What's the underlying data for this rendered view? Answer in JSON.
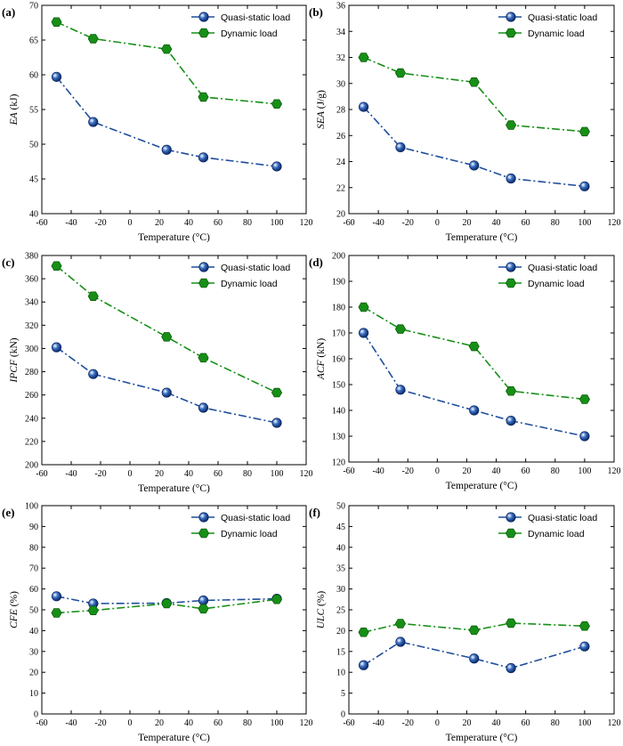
{
  "chart_data": [
    {
      "panel": "(a)",
      "type": "line",
      "xlabel": "Temperature (°C)",
      "ylabel": "EA (kJ)",
      "xlim": [
        -60,
        120
      ],
      "xticks": [
        -60,
        -40,
        -20,
        0,
        20,
        40,
        60,
        80,
        100,
        120
      ],
      "ylim": [
        40,
        70
      ],
      "yticks": [
        40,
        45,
        50,
        55,
        60,
        65,
        70
      ],
      "x": [
        -50,
        -25,
        25,
        50,
        100
      ],
      "series": [
        {
          "name": "Quasi-static load",
          "color": "#1f4e9c",
          "marker": "circle",
          "values": [
            59.7,
            53.2,
            49.2,
            48.1,
            46.8
          ]
        },
        {
          "name": "Dynamic load",
          "color": "#178f17",
          "marker": "hexagon",
          "values": [
            67.6,
            65.2,
            63.7,
            56.8,
            55.8
          ]
        }
      ]
    },
    {
      "panel": "(b)",
      "type": "line",
      "xlabel": "Temperature (°C)",
      "ylabel": "SEA (J/g)",
      "xlim": [
        -60,
        120
      ],
      "xticks": [
        -60,
        -40,
        -20,
        0,
        20,
        40,
        60,
        80,
        100,
        120
      ],
      "ylim": [
        20,
        36
      ],
      "yticks": [
        20,
        22,
        24,
        26,
        28,
        30,
        32,
        34,
        36
      ],
      "x": [
        -50,
        -25,
        25,
        50,
        100
      ],
      "series": [
        {
          "name": "Quasi-static load",
          "color": "#1f4e9c",
          "marker": "circle",
          "values": [
            28.2,
            25.1,
            23.7,
            22.7,
            22.1
          ]
        },
        {
          "name": "Dynamic load",
          "color": "#178f17",
          "marker": "hexagon",
          "values": [
            32.0,
            30.8,
            30.1,
            26.8,
            26.3
          ]
        }
      ]
    },
    {
      "panel": "(c)",
      "type": "line",
      "xlabel": "Temperature (°C)",
      "ylabel": "IPCF (kN)",
      "xlim": [
        -60,
        120
      ],
      "xticks": [
        -60,
        -40,
        -20,
        0,
        20,
        40,
        60,
        80,
        100,
        120
      ],
      "ylim": [
        200,
        380
      ],
      "yticks": [
        200,
        220,
        240,
        260,
        280,
        300,
        320,
        340,
        360,
        380
      ],
      "x": [
        -50,
        -25,
        25,
        50,
        100
      ],
      "series": [
        {
          "name": "Quasi-static load",
          "color": "#1f4e9c",
          "marker": "circle",
          "values": [
            301,
            278,
            262,
            249,
            236
          ]
        },
        {
          "name": "Dynamic load",
          "color": "#178f17",
          "marker": "hexagon",
          "values": [
            371,
            345,
            310,
            292,
            262
          ]
        }
      ]
    },
    {
      "panel": "(d)",
      "type": "line",
      "xlabel": "Temperature (°C)",
      "ylabel": "ACF (kN)",
      "xlim": [
        -60,
        120
      ],
      "xticks": [
        -60,
        -40,
        -20,
        0,
        20,
        40,
        60,
        80,
        100,
        120
      ],
      "ylim": [
        120,
        200
      ],
      "yticks": [
        120,
        130,
        140,
        150,
        160,
        170,
        180,
        190,
        200
      ],
      "x": [
        -50,
        -25,
        25,
        50,
        100
      ],
      "series": [
        {
          "name": "Quasi-static load",
          "color": "#1f4e9c",
          "marker": "circle",
          "values": [
            170,
            148,
            140,
            136,
            130
          ]
        },
        {
          "name": "Dynamic load",
          "color": "#178f17",
          "marker": "hexagon",
          "values": [
            180,
            171.5,
            164.8,
            147.5,
            144.3
          ]
        }
      ]
    },
    {
      "panel": "(e)",
      "type": "line",
      "xlabel": "Temperature (°C)",
      "ylabel": "CFE (%)",
      "xlim": [
        -60,
        120
      ],
      "xticks": [
        -60,
        -40,
        -20,
        0,
        20,
        40,
        60,
        80,
        100,
        120
      ],
      "ylim": [
        0,
        100
      ],
      "yticks": [
        0,
        10,
        20,
        30,
        40,
        50,
        60,
        70,
        80,
        90,
        100
      ],
      "x": [
        -50,
        -25,
        25,
        50,
        100
      ],
      "series": [
        {
          "name": "Quasi-static load",
          "color": "#1f4e9c",
          "marker": "circle",
          "values": [
            56.5,
            53.0,
            53.2,
            54.5,
            55.3
          ]
        },
        {
          "name": "Dynamic load",
          "color": "#178f17",
          "marker": "hexagon",
          "values": [
            48.5,
            49.7,
            53.0,
            50.5,
            55.0
          ]
        }
      ]
    },
    {
      "panel": "(f)",
      "type": "line",
      "xlabel": "Temperature (°C)",
      "ylabel": "ULC (%)",
      "xlim": [
        -60,
        120
      ],
      "xticks": [
        -60,
        -40,
        -20,
        0,
        20,
        40,
        60,
        80,
        100,
        120
      ],
      "ylim": [
        0,
        50
      ],
      "yticks": [
        0,
        5,
        10,
        15,
        20,
        25,
        30,
        35,
        40,
        45,
        50
      ],
      "x": [
        -50,
        -25,
        25,
        50,
        100
      ],
      "series": [
        {
          "name": "Quasi-static load",
          "color": "#1f4e9c",
          "marker": "circle",
          "values": [
            11.7,
            17.3,
            13.3,
            11.0,
            16.2
          ]
        },
        {
          "name": "Dynamic load",
          "color": "#178f17",
          "marker": "hexagon",
          "values": [
            19.6,
            21.7,
            20.1,
            21.8,
            21.1
          ]
        }
      ]
    }
  ]
}
